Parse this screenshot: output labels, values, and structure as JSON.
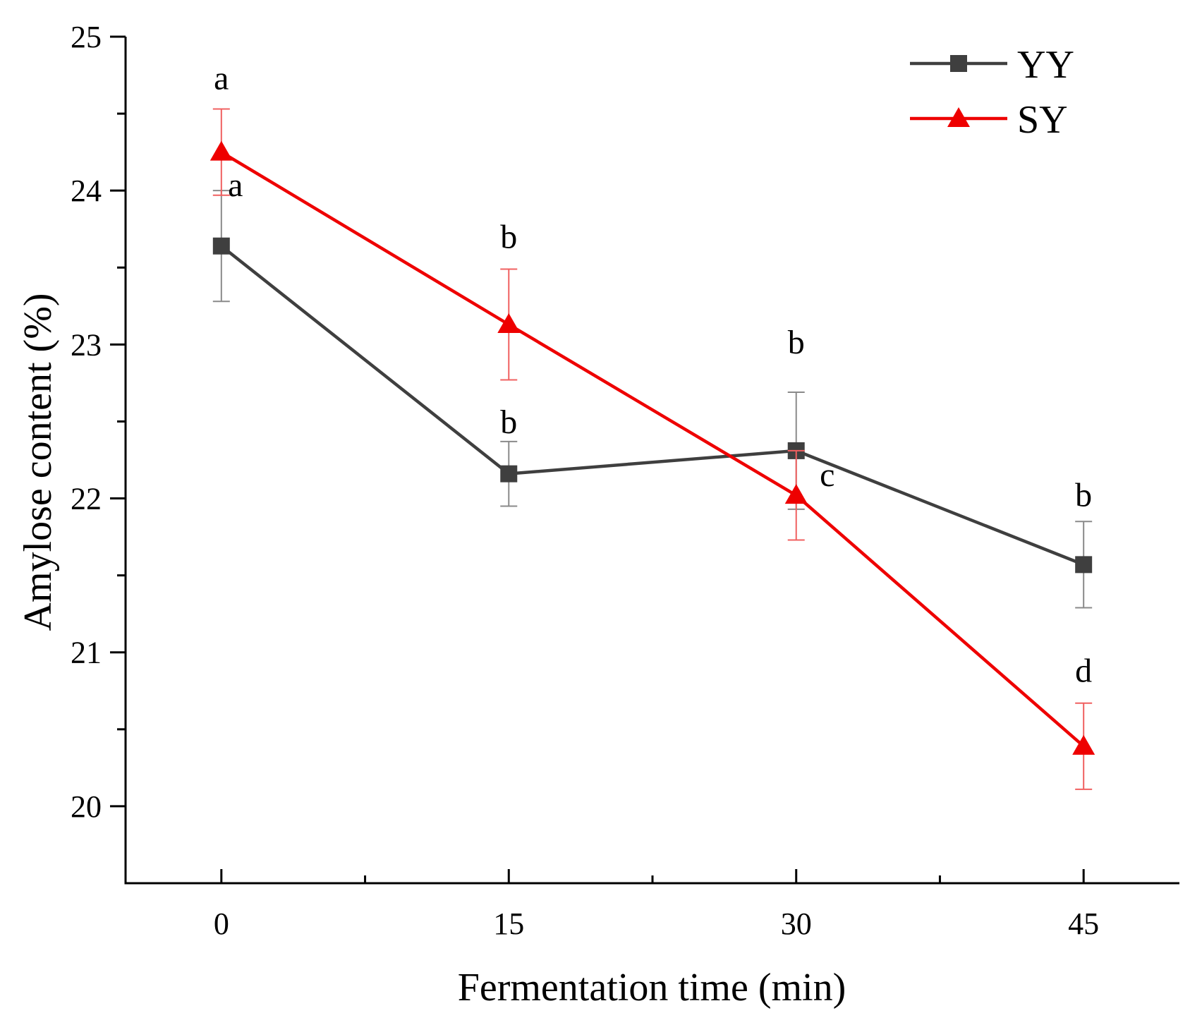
{
  "chart_data": {
    "type": "line",
    "xlabel": "Fermentation time (min)",
    "ylabel": "Amylose content (%)",
    "x": [
      0,
      15,
      30,
      45
    ],
    "x_ticks": [
      "0",
      "15",
      "30",
      "45"
    ],
    "xlim": [
      -5,
      50
    ],
    "ylim": [
      19.5,
      25
    ],
    "y_ticks": [
      "20",
      "21",
      "22",
      "23",
      "24",
      "25"
    ],
    "y_tick_values": [
      20,
      21,
      22,
      23,
      24,
      25
    ],
    "y_minor_ticks": [
      20.5,
      21.5,
      22.5,
      23.5,
      24.5
    ],
    "x_minor_ticks": [
      7.5,
      22.5,
      37.5
    ],
    "grid": false,
    "legend_position": "top-right",
    "series": [
      {
        "name": "YY",
        "color": "#3f3f3f",
        "marker": "square",
        "values": [
          23.64,
          22.16,
          22.31,
          21.57
        ],
        "errors": [
          0.36,
          0.21,
          0.38,
          0.28
        ],
        "labels": [
          "a",
          "b",
          "b",
          "b"
        ]
      },
      {
        "name": "SY",
        "color": "#ee0000",
        "marker": "triangle",
        "values": [
          24.25,
          23.13,
          22.02,
          20.39
        ],
        "errors": [
          0.28,
          0.36,
          0.29,
          0.28
        ],
        "labels": [
          "a",
          "b",
          "c",
          "d"
        ]
      }
    ]
  }
}
